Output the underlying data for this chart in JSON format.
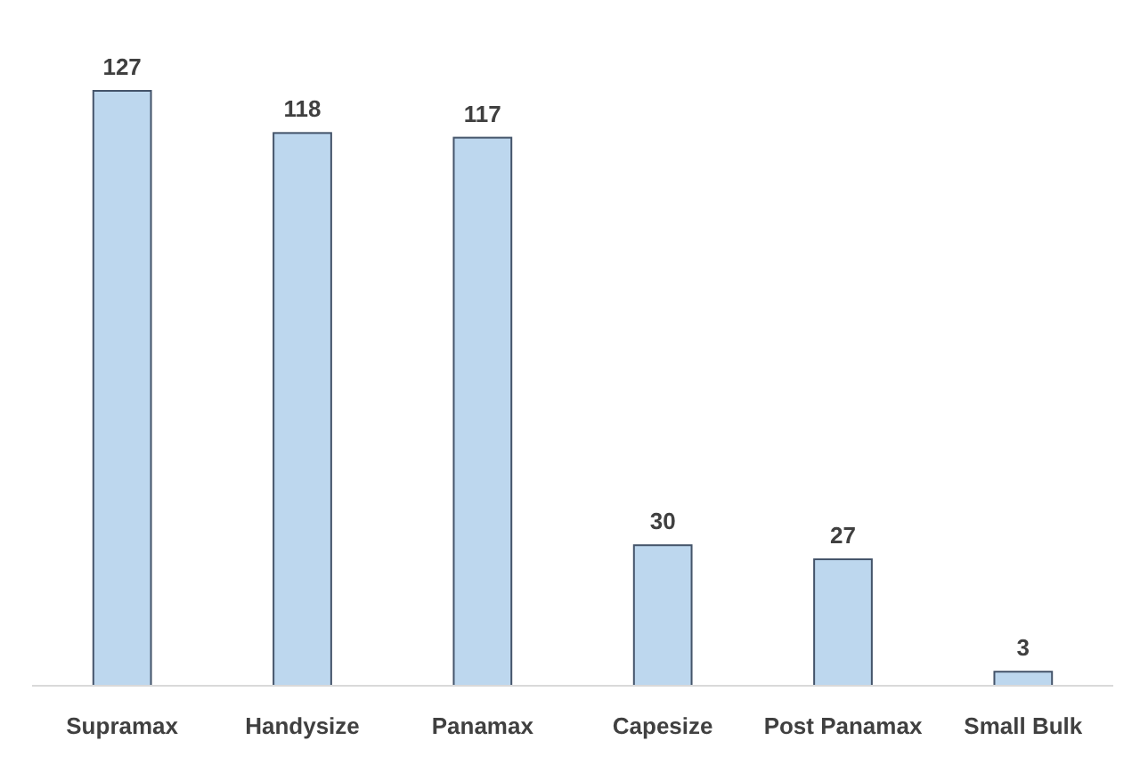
{
  "chart_data": {
    "type": "bar",
    "categories": [
      "Supramax",
      "Handysize",
      "Panamax",
      "Capesize",
      "Post Panamax",
      "Small Bulk"
    ],
    "values": [
      127,
      118,
      117,
      30,
      27,
      3
    ],
    "color": "#bdd7ee",
    "data_labels": true
  }
}
